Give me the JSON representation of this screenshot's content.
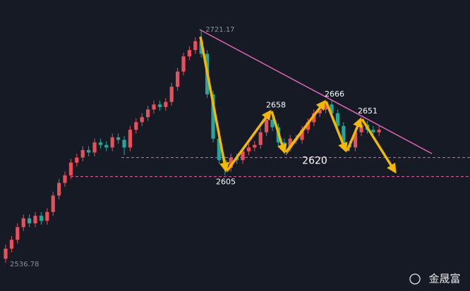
{
  "chart_data": {
    "type": "candlestick",
    "ylim": [
      2525,
      2735
    ],
    "up_color": "#e8505b",
    "down_color": "#26a69a",
    "open": [
      2540,
      2548,
      2555,
      2565,
      2572,
      2568,
      2574,
      2570,
      2577,
      2590,
      2600,
      2606,
      2616,
      2620,
      2626,
      2624,
      2632,
      2630,
      2628,
      2636,
      2634,
      2628,
      2642,
      2648,
      2652,
      2658,
      2662,
      2660,
      2664,
      2676,
      2688,
      2700,
      2705,
      2712,
      2702,
      2670,
      2635,
      2618,
      2612,
      2620,
      2618,
      2625,
      2628,
      2630,
      2640,
      2650,
      2644,
      2632,
      2628,
      2635,
      2634,
      2642,
      2648,
      2655,
      2658,
      2662,
      2655,
      2645,
      2630,
      2628,
      2640,
      2646,
      2642,
      2640
    ],
    "high": [
      2551,
      2558,
      2568,
      2575,
      2575,
      2577,
      2577,
      2580,
      2593,
      2603,
      2609,
      2619,
      2623,
      2629,
      2629,
      2635,
      2635,
      2633,
      2639,
      2639,
      2637,
      2645,
      2651,
      2655,
      2661,
      2665,
      2665,
      2667,
      2679,
      2691,
      2703,
      2708,
      2715,
      2721.17,
      2705,
      2673,
      2638,
      2621,
      2623,
      2623,
      2628,
      2631,
      2633,
      2643,
      2653,
      2653,
      2647,
      2635,
      2638,
      2638,
      2645,
      2651,
      2658,
      2661,
      2665,
      2665,
      2658,
      2648,
      2633,
      2643,
      2649,
      2649,
      2645,
      2645
    ],
    "low": [
      2536.78,
      2545,
      2552,
      2562,
      2565,
      2565,
      2567,
      2567,
      2574,
      2587,
      2597,
      2603,
      2613,
      2617,
      2621,
      2621,
      2627,
      2625,
      2625,
      2631,
      2622,
      2625,
      2639,
      2645,
      2649,
      2655,
      2657,
      2657,
      2661,
      2673,
      2685,
      2697,
      2702,
      2699,
      2667,
      2632,
      2615,
      2606,
      2609,
      2615,
      2615,
      2622,
      2625,
      2627,
      2637,
      2641,
      2629,
      2625,
      2625,
      2631,
      2631,
      2639,
      2645,
      2652,
      2655,
      2652,
      2642,
      2627,
      2625,
      2625,
      2637,
      2639,
      2637,
      2637
    ],
    "close": [
      2548,
      2555,
      2565,
      2572,
      2568,
      2574,
      2570,
      2577,
      2590,
      2600,
      2606,
      2616,
      2620,
      2626,
      2624,
      2632,
      2630,
      2628,
      2636,
      2634,
      2628,
      2642,
      2648,
      2652,
      2658,
      2662,
      2660,
      2664,
      2676,
      2688,
      2700,
      2705,
      2712,
      2702,
      2670,
      2635,
      2618,
      2612,
      2620,
      2618,
      2625,
      2628,
      2630,
      2640,
      2650,
      2644,
      2632,
      2628,
      2635,
      2634,
      2642,
      2648,
      2655,
      2658,
      2662,
      2655,
      2645,
      2630,
      2628,
      2640,
      2646,
      2642,
      2640,
      2642
    ],
    "pivot_labels": [
      2605,
      2658,
      2666,
      2651
    ],
    "support_level": 2620,
    "lower_level": 2605,
    "watermark": "金晟富"
  }
}
